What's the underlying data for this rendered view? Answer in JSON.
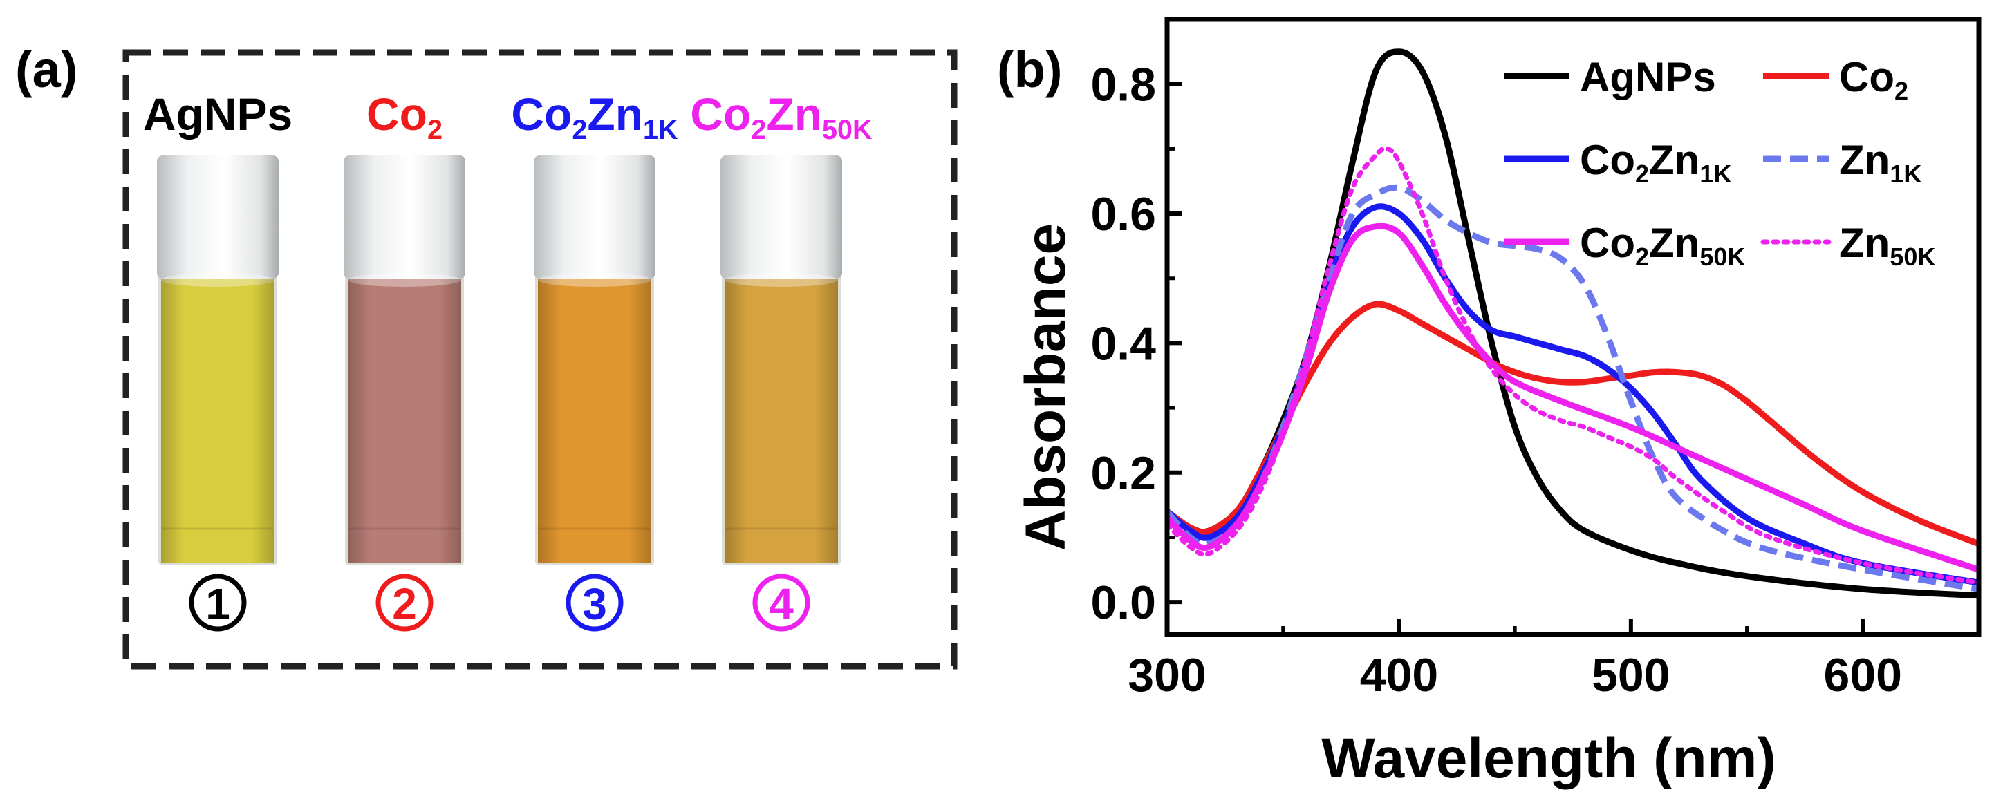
{
  "panel_a": {
    "label": "(a)",
    "samples": [
      {
        "name": "AgNPs",
        "base": "AgNPs",
        "sub1": "",
        "mid": "",
        "sub2": "",
        "color": "#000000",
        "liquid": "#d8cd3e",
        "number": "1"
      },
      {
        "name": "Co2",
        "base": "Co",
        "sub1": "2",
        "mid": "",
        "sub2": "",
        "color": "#ee1c1c",
        "liquid": "#b77c74",
        "number": "2"
      },
      {
        "name": "Co2Zn1K",
        "base": "Co",
        "sub1": "2",
        "mid": "Zn",
        "sub2": "1K",
        "color": "#1a1aee",
        "liquid": "#e0962e",
        "number": "3"
      },
      {
        "name": "Co2Zn50K",
        "base": "Co",
        "sub1": "2",
        "mid": "Zn",
        "sub2": "50K",
        "color": "#ee22ee",
        "liquid": "#d4a23e",
        "number": "4"
      }
    ]
  },
  "chart_data": {
    "type": "line",
    "panel_label": "(b)",
    "xlabel": "Wavelength (nm)",
    "ylabel": "Absorbance",
    "xlim": [
      300,
      650
    ],
    "ylim": [
      -0.05,
      0.9
    ],
    "xticks": [
      "300",
      "400",
      "500",
      "600"
    ],
    "yticks": [
      "0.0",
      "0.2",
      "0.4",
      "0.6",
      "0.8"
    ],
    "legend_position": "top-right",
    "series": [
      {
        "name": "AgNPs",
        "lbl_base": "AgNPs",
        "lbl_sub1": "",
        "lbl_mid": "",
        "lbl_sub2": "",
        "color": "#000000",
        "dash": "solid",
        "x": [
          300,
          310,
          318,
          330,
          340,
          350,
          360,
          370,
          380,
          390,
          400,
          410,
          420,
          430,
          440,
          450,
          460,
          470,
          480,
          500,
          520,
          550,
          600,
          650
        ],
        "y": [
          0.14,
          0.115,
          0.11,
          0.14,
          0.2,
          0.28,
          0.38,
          0.52,
          0.68,
          0.82,
          0.85,
          0.82,
          0.72,
          0.56,
          0.4,
          0.27,
          0.19,
          0.14,
          0.11,
          0.08,
          0.06,
          0.04,
          0.02,
          0.01
        ]
      },
      {
        "name": "Co2",
        "lbl_base": "Co",
        "lbl_sub1": "2",
        "lbl_mid": "",
        "lbl_sub2": "",
        "color": "#ee1c1c",
        "dash": "solid",
        "x": [
          300,
          310,
          318,
          330,
          340,
          350,
          360,
          370,
          380,
          390,
          400,
          410,
          420,
          430,
          440,
          450,
          460,
          470,
          480,
          490,
          500,
          510,
          520,
          530,
          540,
          550,
          560,
          580,
          600,
          625,
          650
        ],
        "y": [
          0.14,
          0.115,
          0.11,
          0.14,
          0.2,
          0.27,
          0.34,
          0.4,
          0.44,
          0.46,
          0.45,
          0.43,
          0.41,
          0.39,
          0.37,
          0.355,
          0.345,
          0.34,
          0.34,
          0.345,
          0.35,
          0.355,
          0.355,
          0.35,
          0.335,
          0.31,
          0.28,
          0.22,
          0.17,
          0.125,
          0.09
        ]
      },
      {
        "name": "Co2Zn1K",
        "lbl_base": "Co",
        "lbl_sub1": "2",
        "lbl_mid": "Zn",
        "lbl_sub2": "1K",
        "color": "#1a1aee",
        "dash": "solid",
        "x": [
          300,
          310,
          318,
          330,
          340,
          350,
          360,
          370,
          380,
          390,
          400,
          410,
          420,
          430,
          440,
          450,
          460,
          470,
          480,
          490,
          500,
          510,
          520,
          530,
          550,
          575,
          600,
          650
        ],
        "y": [
          0.14,
          0.11,
          0.1,
          0.13,
          0.19,
          0.27,
          0.37,
          0.5,
          0.58,
          0.61,
          0.6,
          0.56,
          0.5,
          0.45,
          0.42,
          0.41,
          0.4,
          0.39,
          0.38,
          0.36,
          0.33,
          0.29,
          0.24,
          0.19,
          0.13,
          0.09,
          0.06,
          0.03
        ]
      },
      {
        "name": "Zn1K",
        "lbl_base": "Zn",
        "lbl_sub1": "1K",
        "lbl_mid": "",
        "lbl_sub2": "",
        "color": "#6b78ee",
        "dash": "dashed",
        "x": [
          300,
          310,
          318,
          330,
          340,
          350,
          360,
          370,
          380,
          390,
          400,
          410,
          420,
          430,
          440,
          450,
          460,
          470,
          480,
          490,
          500,
          510,
          520,
          540,
          560,
          600,
          650
        ],
        "y": [
          0.14,
          0.1,
          0.09,
          0.12,
          0.18,
          0.27,
          0.38,
          0.5,
          0.6,
          0.63,
          0.64,
          0.62,
          0.59,
          0.57,
          0.555,
          0.55,
          0.545,
          0.53,
          0.49,
          0.41,
          0.31,
          0.22,
          0.16,
          0.11,
          0.08,
          0.05,
          0.02
        ]
      },
      {
        "name": "Co2Zn50K",
        "lbl_base": "Co",
        "lbl_sub1": "2",
        "lbl_mid": "Zn",
        "lbl_sub2": "50K",
        "color": "#ee22ee",
        "dash": "solid",
        "x": [
          300,
          310,
          318,
          330,
          340,
          350,
          360,
          370,
          380,
          390,
          400,
          410,
          420,
          430,
          440,
          450,
          470,
          500,
          525,
          550,
          575,
          600,
          650
        ],
        "y": [
          0.13,
          0.095,
          0.085,
          0.12,
          0.18,
          0.26,
          0.36,
          0.48,
          0.56,
          0.58,
          0.57,
          0.52,
          0.46,
          0.41,
          0.37,
          0.34,
          0.31,
          0.27,
          0.23,
          0.19,
          0.15,
          0.11,
          0.05
        ]
      },
      {
        "name": "Zn50K",
        "lbl_base": "Zn",
        "lbl_sub1": "50K",
        "lbl_mid": "",
        "lbl_sub2": "",
        "color": "#ee22ee",
        "dash": "dotted",
        "x": [
          300,
          310,
          318,
          330,
          340,
          350,
          360,
          370,
          380,
          390,
          395,
          400,
          410,
          420,
          430,
          440,
          450,
          460,
          470,
          480,
          490,
          500,
          510,
          520,
          540,
          560,
          600,
          650
        ],
        "y": [
          0.12,
          0.085,
          0.075,
          0.11,
          0.17,
          0.26,
          0.38,
          0.52,
          0.64,
          0.69,
          0.7,
          0.68,
          0.6,
          0.5,
          0.42,
          0.36,
          0.32,
          0.295,
          0.28,
          0.27,
          0.255,
          0.24,
          0.22,
          0.19,
          0.14,
          0.1,
          0.06,
          0.03
        ]
      }
    ]
  }
}
